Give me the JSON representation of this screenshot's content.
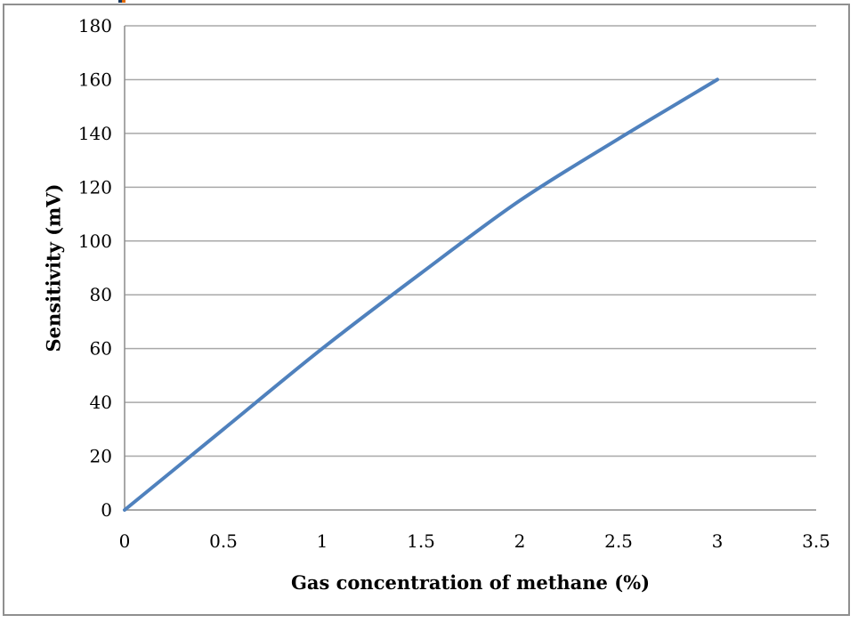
{
  "chart_data": {
    "type": "line",
    "title": "",
    "xlabel": "Gas concentration of methane (%)",
    "ylabel": "Sensitivity (mV)",
    "x": [
      0,
      0.5,
      1,
      1.5,
      2,
      2.5,
      3
    ],
    "series": [
      {
        "name": "Sensitivity",
        "values": [
          0,
          30,
          60,
          88,
          115,
          138,
          160
        ]
      }
    ],
    "xlim": [
      0,
      3.5
    ],
    "ylim": [
      0,
      180
    ],
    "x_tick_values": [
      0,
      0.5,
      1,
      1.5,
      2,
      2.5,
      3,
      3.5
    ],
    "x_tick_labels": [
      "0",
      "0.5",
      "1",
      "1.5",
      "2",
      "2.5",
      "3",
      "3.5"
    ],
    "y_tick_values": [
      0,
      20,
      40,
      60,
      80,
      100,
      120,
      140,
      160,
      180
    ],
    "y_tick_labels": [
      "0",
      "20",
      "40",
      "60",
      "80",
      "100",
      "120",
      "140",
      "160",
      "180"
    ],
    "grid": "horizontal",
    "legend_position": "none",
    "line_color": "#4f81bd",
    "line_width": 4,
    "gridline_color": "#a8a8a8",
    "axis_color": "#8c8c8c",
    "frame_border_color": "#8f8f8f",
    "background_color": "#ffffff"
  },
  "edge_artifact": {
    "left_color": "#17375e",
    "right_color": "#e36c0a"
  }
}
